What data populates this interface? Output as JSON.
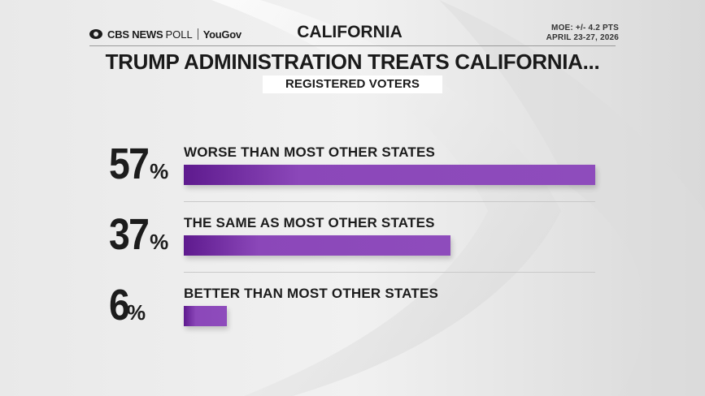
{
  "header": {
    "brand_cbs": "CBS NEWS",
    "brand_poll": "POLL",
    "brand_partner": "YouGov",
    "region": "CALIFORNIA",
    "moe": "MOE: +/- 4.2 PTS",
    "dates": "APRIL 23-27, 2026"
  },
  "colors": {
    "bar_start": "#5e1a8e",
    "bar_end": "#8e4cbc",
    "text": "#1c1c1c"
  },
  "chart_data": {
    "type": "bar",
    "orientation": "horizontal",
    "title": "TRUMP ADMINISTRATION TREATS CALIFORNIA...",
    "subtitle": "REGISTERED VOTERS",
    "categories": [
      "WORSE THAN MOST OTHER STATES",
      "THE SAME AS MOST OTHER STATES",
      "BETTER THAN MOST OTHER STATES"
    ],
    "values": [
      57,
      37,
      6
    ],
    "value_labels": [
      "57",
      "37",
      "6"
    ],
    "unit": "%",
    "xlim": [
      0,
      57
    ],
    "grid": false
  }
}
